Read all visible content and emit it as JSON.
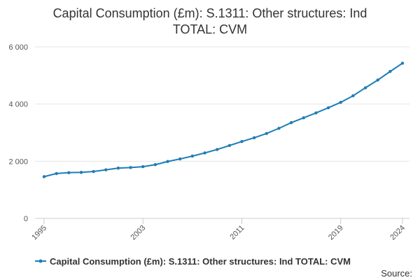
{
  "colors": {
    "series": "#1f7db5",
    "grid": "#e6e6e6",
    "axis": "#cccccc"
  },
  "chart_data": {
    "type": "line",
    "title": "Capital Consumption (£m): S.1311: Other structures: Ind TOTAL: CVM",
    "title_lines": [
      "Capital Consumption (£m): S.1311: Other structures: Ind",
      "TOTAL: CVM"
    ],
    "xlabel": "",
    "ylabel": "",
    "ylim": [
      0,
      6000
    ],
    "xlim": [
      1995,
      2024
    ],
    "y_ticks": [
      0,
      2000,
      4000,
      6000
    ],
    "y_tick_labels": [
      "0",
      "2 000",
      "4 000",
      "6 000"
    ],
    "x_tick_labels": [
      "1995",
      "2003",
      "2011",
      "2019",
      "2024"
    ],
    "grid": true,
    "legend_position": "bottom",
    "series": [
      {
        "name": "Capital Consumption (£m): S.1311: Other structures: Ind TOTAL: CVM",
        "x": [
          1995,
          1996,
          1997,
          1998,
          1999,
          2000,
          2001,
          2002,
          2003,
          2004,
          2005,
          2006,
          2007,
          2008,
          2009,
          2010,
          2011,
          2012,
          2013,
          2014,
          2015,
          2016,
          2017,
          2018,
          2019,
          2020,
          2021,
          2022,
          2023,
          2024
        ],
        "values": [
          1460,
          1570,
          1600,
          1610,
          1640,
          1700,
          1760,
          1780,
          1810,
          1880,
          1990,
          2080,
          2180,
          2290,
          2410,
          2550,
          2690,
          2820,
          2970,
          3150,
          3350,
          3520,
          3690,
          3870,
          4060,
          4290,
          4570,
          4840,
          5140,
          5430
        ]
      }
    ]
  },
  "legend": {
    "label": "Capital Consumption (£m): S.1311: Other structures: Ind TOTAL: CVM"
  },
  "source": {
    "label": "Source:"
  }
}
